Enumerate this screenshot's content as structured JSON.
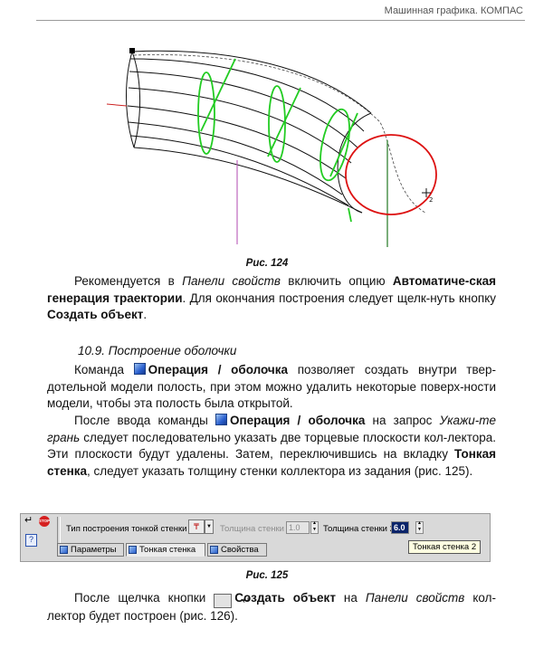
{
  "header": {
    "running_head": "Машинная графика. КОМПАС"
  },
  "figure124": {
    "caption": "Рис. 124"
  },
  "para1": {
    "t1": "Рекомендуется в ",
    "i1": "Панели свойств",
    "t2": " включить опцию ",
    "b1": "Автоматиче-ская генерация траектории",
    "t3": ". Для окончания построения следует щелк-нуть кнопку ",
    "b2": "Создать объект",
    "t4": "."
  },
  "section": {
    "title": "10.9. Построение оболочки"
  },
  "para2": {
    "t1": "Команда ",
    "b1": "Операция / оболочка",
    "t2": " позволяет создать внутри твер-дотельной модели полость, при этом можно удалить некоторые поверх-ности модели, чтобы эта полость была открытой."
  },
  "para3": {
    "t1": "После ввода команды ",
    "b1": "Операция / оболочка",
    "t2": " на запрос ",
    "i1": "Укажи-те грань",
    "t3": " следует последовательно указать две торцевые плоскости кол-лектора. Эти плоскости будут удалены. Затем, переключившись на вкладку ",
    "b2": "Тонкая стенка",
    "t4": ", следует указать толщину стенки коллектора из задания (рис. 125)."
  },
  "panel": {
    "stop_label": "STOP",
    "type_label": "Тип построения тонкой стенки",
    "type_glyph": "₸",
    "thickness1_label": "Толщина стенки 1",
    "thickness1_value": "1.0",
    "thickness2_label": "Толщина стенки 2",
    "thickness2_value": "6.0",
    "tooltip": "Тонкая стенка 2",
    "tabs": [
      "Параметры",
      "Тонкая стенка",
      "Свойства"
    ]
  },
  "figure125": {
    "caption": "Рис. 125"
  },
  "para4": {
    "t1": "После щелчка кнопки ",
    "b1": "Создать объект",
    "t2": " на ",
    "i1": "Панели свойств",
    "t3": " кол-лектор будет построен (рис. 126)."
  },
  "colors": {
    "ink": "#111111",
    "section_green": "#22cc22",
    "circle_red": "#dd1111"
  }
}
